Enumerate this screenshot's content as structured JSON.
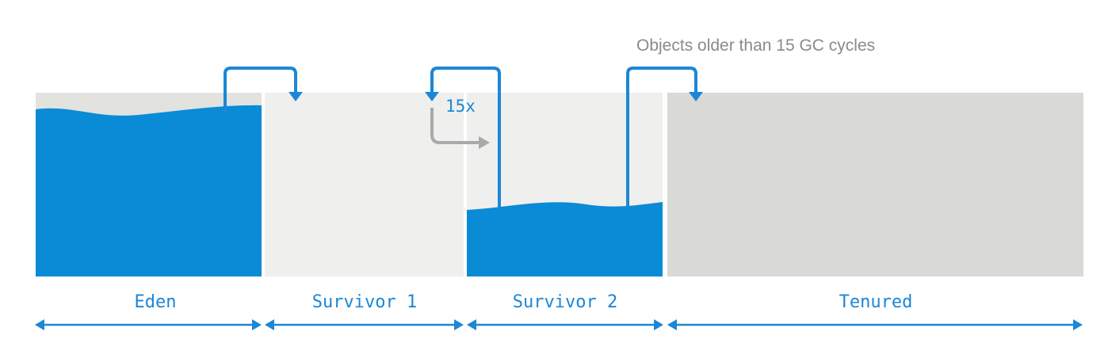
{
  "annotation": "Objects older than 15 GC cycles",
  "cycle_counter": "15x",
  "regions": [
    {
      "id": "eden",
      "label": "Eden",
      "fill_level": 0.93
    },
    {
      "id": "survivor1",
      "label": "Survivor 1",
      "fill_level": 0.0
    },
    {
      "id": "survivor2",
      "label": "Survivor 2",
      "fill_level": 0.4
    },
    {
      "id": "tenured",
      "label": "Tenured",
      "fill_level": 0.0
    }
  ],
  "colors": {
    "water": "#0a8bd6",
    "arrow_blue": "#1b87d6",
    "arrow_gray": "#a9a9a9",
    "empty_region": "#efefee",
    "tenured_region": "#d9d9d6",
    "eden_empty": "#e2e2df",
    "annotation_text": "#8a8a8a"
  }
}
